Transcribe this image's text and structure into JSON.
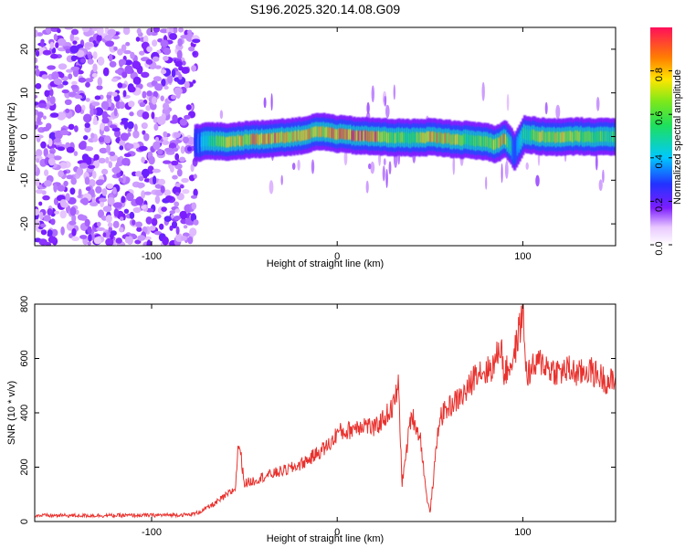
{
  "title": "S196.2025.320.14.08.G09",
  "chart_data": [
    {
      "type": "heatmap",
      "xlabel": "Height of straight line (km)",
      "ylabel": "Frequency (Hz)",
      "xlim": [
        -163,
        150
      ],
      "ylim": [
        -25,
        25
      ],
      "xticks": [
        -100,
        0,
        100
      ],
      "xtick_labels": [
        "-100",
        "0",
        "100"
      ],
      "yticks": [
        -20,
        -10,
        0,
        10,
        20
      ],
      "ytick_labels": [
        "-20",
        "-10",
        "0",
        "10",
        "20"
      ],
      "colorbar": {
        "label": "Normalized spectral amplitude",
        "range": [
          0,
          1
        ],
        "ticks": [
          0.0,
          0.2,
          0.4,
          0.6,
          0.8
        ],
        "tick_labels": [
          "0.0",
          "0.2",
          "0.4",
          "0.6",
          "0.8"
        ]
      },
      "noise_region_x": [
        -163,
        -76
      ],
      "signal_band": {
        "x": [
          -77,
          -70,
          -60,
          -50,
          -40,
          -30,
          -20,
          -10,
          0,
          10,
          20,
          30,
          40,
          50,
          60,
          70,
          80,
          85,
          90,
          95,
          100,
          110,
          120,
          130,
          140,
          150
        ],
        "center_freq_hz": [
          -1.5,
          -1.0,
          -1.2,
          -0.8,
          -0.5,
          -0.2,
          0.2,
          1.2,
          0.6,
          0.2,
          0.0,
          -0.2,
          -0.3,
          -0.1,
          -0.5,
          -0.8,
          -1.2,
          -1.8,
          -0.3,
          -3.5,
          0.5,
          0.0,
          -0.2,
          0.1,
          -0.1,
          0.0
        ],
        "peak_amplitude": [
          0.3,
          0.5,
          0.75,
          0.85,
          0.9,
          0.9,
          0.85,
          0.8,
          0.95,
          0.98,
          0.95,
          0.7,
          0.65,
          0.85,
          0.85,
          0.6,
          0.75,
          0.8,
          0.9,
          0.3,
          0.55,
          0.75,
          0.8,
          0.7,
          0.65,
          0.6
        ]
      }
    },
    {
      "type": "line",
      "xlabel": "Height of straight line (km)",
      "ylabel": "SNR (10 * v/v)",
      "xlim": [
        -163,
        150
      ],
      "ylim": [
        0,
        800
      ],
      "xticks": [
        -100,
        0,
        100
      ],
      "xtick_labels": [
        "-100",
        "0",
        "100"
      ],
      "yticks": [
        0,
        200,
        400,
        600,
        800
      ],
      "ytick_labels": [
        "0",
        "200",
        "400",
        "600",
        "800"
      ],
      "series": [
        {
          "name": "SNR",
          "color": "#e8322e",
          "x": [
            -163,
            -140,
            -120,
            -100,
            -90,
            -80,
            -76,
            -70,
            -65,
            -60,
            -55,
            -53,
            -50,
            -45,
            -40,
            -35,
            -30,
            -25,
            -20,
            -15,
            -10,
            -5,
            -2,
            0,
            5,
            10,
            15,
            20,
            25,
            30,
            33,
            35,
            40,
            45,
            48,
            50,
            55,
            60,
            65,
            70,
            73,
            75,
            80,
            85,
            88,
            90,
            95,
            98,
            100,
            102,
            105,
            110,
            115,
            120,
            125,
            130,
            135,
            140,
            145,
            150
          ],
          "y": [
            22,
            22,
            22,
            23,
            24,
            25,
            30,
            50,
            70,
            95,
            120,
            300,
            140,
            150,
            165,
            175,
            185,
            195,
            210,
            230,
            255,
            280,
            300,
            330,
            330,
            350,
            360,
            340,
            380,
            420,
            500,
            140,
            400,
            300,
            100,
            30,
            380,
            420,
            450,
            480,
            520,
            560,
            550,
            580,
            660,
            540,
            600,
            700,
            780,
            540,
            560,
            590,
            560,
            550,
            560,
            540,
            560,
            540,
            520,
            510
          ]
        }
      ]
    }
  ]
}
